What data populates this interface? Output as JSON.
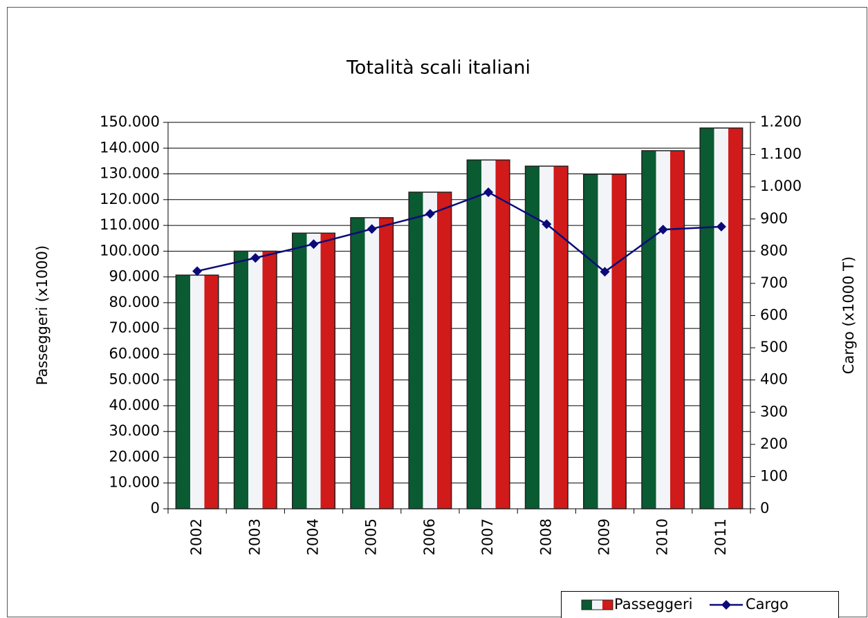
{
  "chart_data": {
    "type": "bar",
    "title": "Totalità scali italiani",
    "y_label": "Passeggeri (x1000)",
    "y2_label": "Cargo (x1000 T)",
    "categories": [
      "2002",
      "2003",
      "2004",
      "2005",
      "2006",
      "2007",
      "2008",
      "2009",
      "2010",
      "2011"
    ],
    "series": [
      {
        "name": "Passeggeri",
        "type": "bar",
        "colors": [
          "#0a5a32",
          "#f2f4f8",
          "#d11a1a"
        ],
        "values": [
          90700,
          100000,
          107000,
          113000,
          122900,
          135400,
          133000,
          129900,
          139000,
          147800
        ]
      },
      {
        "name": "Cargo",
        "type": "line",
        "axis": "y2",
        "color": "#0a0a7a",
        "values": [
          738,
          779,
          822,
          869,
          916,
          983,
          884,
          736,
          867,
          876
        ]
      }
    ],
    "ylim": [
      0,
      150000
    ],
    "yticks": [
      0,
      {
        "value": 10000,
        "label": "10.000"
      },
      {
        "value": 20000,
        "label": "20.000"
      },
      {
        "value": 30000,
        "label": "30.000"
      },
      {
        "value": 40000,
        "label": "40.000"
      },
      {
        "value": 50000,
        "label": "50.000"
      },
      {
        "value": 60000,
        "label": "60.000"
      },
      {
        "value": 70000,
        "label": "70.000"
      },
      {
        "value": 80000,
        "label": "80.000"
      },
      {
        "value": 90000,
        "label": "90.000"
      },
      {
        "value": 100000,
        "label": "100.000"
      },
      {
        "value": 110000,
        "label": "110.000"
      },
      {
        "value": 120000,
        "label": "120.000"
      },
      {
        "value": 130000,
        "label": "130.000"
      },
      {
        "value": 140000,
        "label": "140.000"
      },
      {
        "value": 150000,
        "label": "150.000"
      }
    ],
    "y2lim": [
      0,
      1200
    ],
    "y2ticks": [
      0,
      100,
      200,
      300,
      400,
      500,
      600,
      700,
      800,
      900,
      {
        "value": 1000,
        "label": "1.000"
      },
      {
        "value": 1100,
        "label": "1.100"
      },
      {
        "value": 1200,
        "label": "1.200"
      }
    ],
    "grid": true,
    "legend": "bottom-right"
  }
}
